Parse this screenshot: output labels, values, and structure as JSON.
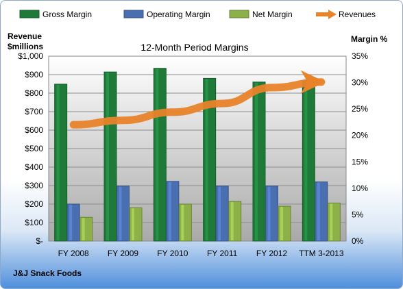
{
  "chart_data": {
    "type": "bar",
    "title": "12-Month Period Margins",
    "company": "J&J Snack Foods",
    "categories": [
      "FY 2008",
      "FY 2009",
      "FY 2010",
      "FY 2011",
      "FY 2012",
      "TTM 3-2013"
    ],
    "series": [
      {
        "name": "Gross Margin",
        "axis": "right",
        "color": "#1f7a3a",
        "values": [
          29.7,
          32.0,
          32.7,
          30.8,
          30.1,
          30.4
        ]
      },
      {
        "name": "Operating Margin",
        "axis": "right",
        "color": "#4a6fb0",
        "values": [
          7.0,
          10.4,
          11.3,
          10.4,
          10.4,
          11.2
        ]
      },
      {
        "name": "Net Margin",
        "axis": "right",
        "color": "#8db049",
        "values": [
          4.5,
          6.3,
          7.0,
          7.5,
          6.6,
          7.2
        ]
      },
      {
        "name": "Revenues",
        "axis": "left",
        "type": "line",
        "color": "#e8832a",
        "values": [
          629,
          653,
          697,
          744,
          830,
          860
        ]
      }
    ],
    "left_axis": {
      "label_line1": "Revenue",
      "label_line2": "$millions",
      "range": [
        0,
        1000
      ],
      "ticks": [
        "$-",
        "$100",
        "$200",
        "$300",
        "$400",
        "$500",
        "$600",
        "$700",
        "$800",
        "$900",
        "$1,000"
      ]
    },
    "right_axis": {
      "label": "Margin %",
      "range": [
        0,
        35
      ],
      "ticks": [
        "0%",
        "5%",
        "10%",
        "15%",
        "20%",
        "25%",
        "30%",
        "35%"
      ]
    },
    "grid": true,
    "legend_position": "top"
  }
}
